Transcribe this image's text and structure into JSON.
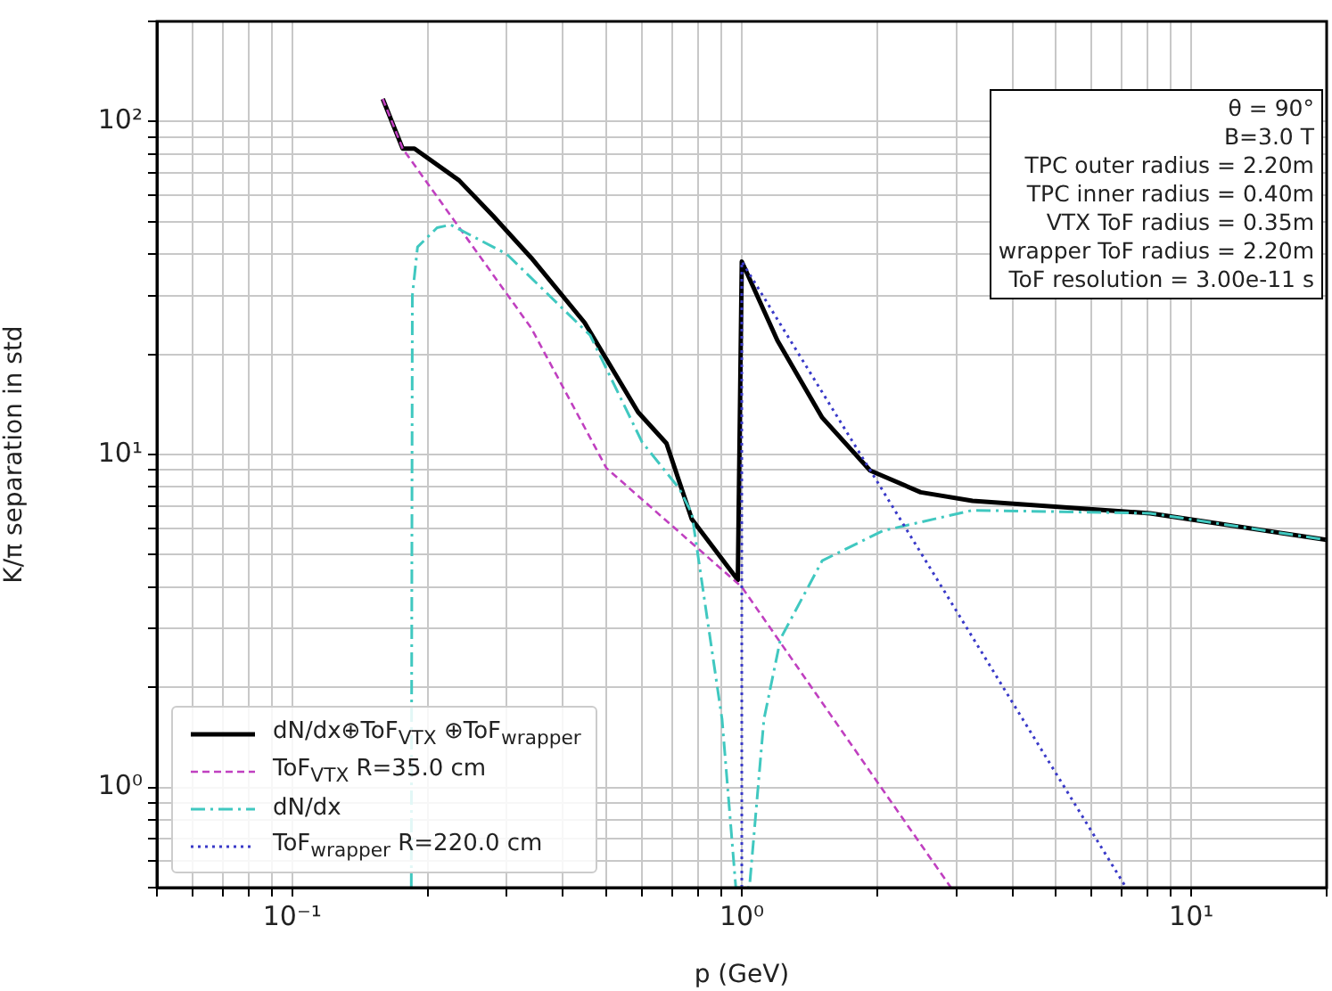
{
  "chart_data": {
    "type": "line",
    "xlabel": "p (GeV)",
    "ylabel": "K/π separation in std",
    "log": "xy",
    "grid": true,
    "legend": "bottom left",
    "marker": "none",
    "xlim": [
      0.05,
      20
    ],
    "ylim": [
      0.5,
      200
    ],
    "xticks": [
      {
        "value": 0.05,
        "label": null
      },
      {
        "value": 0.06,
        "label": null
      },
      {
        "value": 0.07,
        "label": null
      },
      {
        "value": 0.08,
        "label": null
      },
      {
        "value": 0.09,
        "label": null
      },
      {
        "value": 0.1,
        "label": "10⁻¹"
      },
      {
        "value": 0.2,
        "label": null
      },
      {
        "value": 0.3,
        "label": null
      },
      {
        "value": 0.4,
        "label": null
      },
      {
        "value": 0.5,
        "label": null
      },
      {
        "value": 0.6,
        "label": null
      },
      {
        "value": 0.7,
        "label": null
      },
      {
        "value": 0.8,
        "label": null
      },
      {
        "value": 0.9,
        "label": null
      },
      {
        "value": 1,
        "label": "10⁰"
      },
      {
        "value": 2,
        "label": null
      },
      {
        "value": 3,
        "label": null
      },
      {
        "value": 4,
        "label": null
      },
      {
        "value": 5,
        "label": null
      },
      {
        "value": 6,
        "label": null
      },
      {
        "value": 7,
        "label": null
      },
      {
        "value": 8,
        "label": null
      },
      {
        "value": 9,
        "label": null
      },
      {
        "value": 10,
        "label": "10¹"
      },
      {
        "value": 20,
        "label": null
      }
    ],
    "yticks": [
      {
        "value": 0.5,
        "label": null
      },
      {
        "value": 0.6,
        "label": null
      },
      {
        "value": 0.7,
        "label": null
      },
      {
        "value": 0.8,
        "label": null
      },
      {
        "value": 0.9,
        "label": null
      },
      {
        "value": 1,
        "label": "10⁰"
      },
      {
        "value": 2,
        "label": null
      },
      {
        "value": 3,
        "label": null
      },
      {
        "value": 4,
        "label": null
      },
      {
        "value": 5,
        "label": null
      },
      {
        "value": 6,
        "label": null
      },
      {
        "value": 7,
        "label": null
      },
      {
        "value": 8,
        "label": null
      },
      {
        "value": 9,
        "label": null
      },
      {
        "value": 10,
        "label": "10¹"
      },
      {
        "value": 20,
        "label": null
      },
      {
        "value": 30,
        "label": null
      },
      {
        "value": 40,
        "label": null
      },
      {
        "value": 50,
        "label": null
      },
      {
        "value": 60,
        "label": null
      },
      {
        "value": 70,
        "label": null
      },
      {
        "value": 80,
        "label": null
      },
      {
        "value": 90,
        "label": null
      },
      {
        "value": 100,
        "label": "10²"
      },
      {
        "value": 200,
        "label": null
      }
    ],
    "annotations": [
      "θ = 90°",
      "B=3.0 T",
      "TPC outer radius = 2.20m",
      "TPC inner radius = 0.40m",
      "VTX ToF radius = 0.35m",
      "wrapper ToF radius = 2.20m",
      "ToF resolution = 3.00e-11 s"
    ],
    "series": [
      {
        "name": "dN/dx⊕ToF$_{VTX}$ ⊕ToF$_{wrapper}$",
        "color": "#000000",
        "line_style": "solid",
        "x": [
          0.159,
          0.176,
          0.187,
          0.235,
          0.28,
          0.34,
          0.447,
          0.588,
          0.68,
          0.774,
          0.98,
          1,
          1.2,
          1.51,
          1.93,
          2.5,
          3.26,
          8.1,
          20
        ],
        "values": [
          117,
          83,
          83,
          66.6,
          52,
          39,
          24.9,
          13.4,
          10.8,
          6.4,
          4.2,
          38,
          22,
          12.9,
          8.95,
          7.7,
          7.26,
          6.66,
          5.54
        ]
      },
      {
        "name": "ToF$_{VTX}$ R=35.0 cm",
        "color": "#c040c0",
        "line_style": "dashed",
        "x": [
          0.159,
          0.176,
          0.34,
          0.5,
          1,
          2,
          2.92
        ],
        "values": [
          117,
          83,
          24,
          9.1,
          4.0,
          1.04,
          0.5
        ]
      },
      {
        "name": "dN/dx",
        "color": "#40c8c0",
        "line_style": "dashdot",
        "x": [
          0.184,
          0.185,
          0.19,
          0.21,
          0.225,
          0.3,
          0.46,
          0.6,
          0.726,
          0.774,
          0.904,
          0.97,
          1.04,
          1.12,
          1.22,
          1.51,
          2.06,
          3.26,
          8.1,
          20
        ],
        "values": [
          0.5,
          30,
          42,
          48,
          49,
          40,
          22.8,
          10.9,
          7.9,
          6.66,
          1.6,
          0.5,
          0.5,
          1.6,
          2.8,
          4.8,
          5.9,
          6.8,
          6.66,
          5.54
        ]
      },
      {
        "name": "ToF$_{wrapper}$ R=220.0 cm",
        "color": "#3a3ac8",
        "line_style": "dotted",
        "x": [
          1,
          1,
          2,
          4,
          7.16
        ],
        "values": [
          0.5,
          38,
          8.3,
          1.8,
          0.5
        ]
      }
    ]
  }
}
